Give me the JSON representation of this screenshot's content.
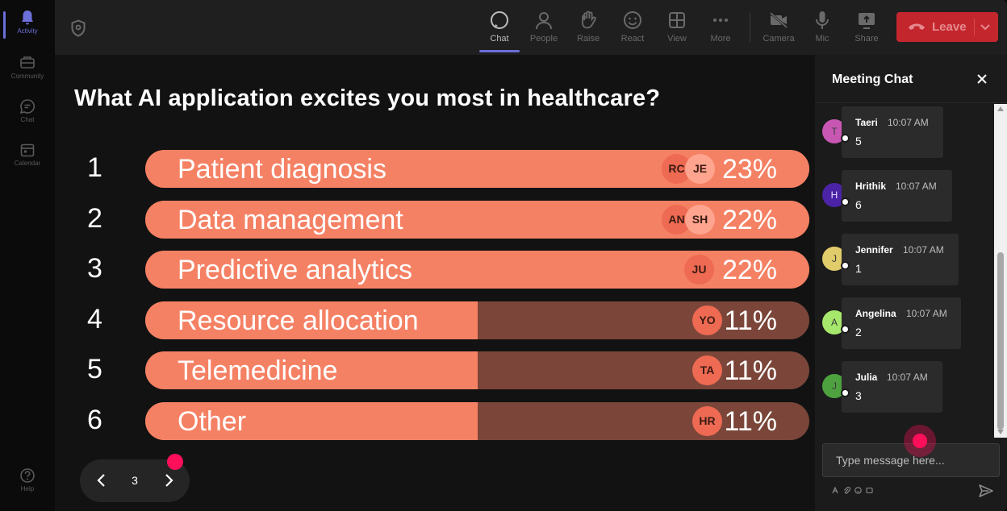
{
  "rail": {
    "items": [
      {
        "label": "Activity",
        "icon": "bell-icon",
        "active": true
      },
      {
        "label": "Community",
        "icon": "community-icon",
        "active": false
      },
      {
        "label": "Chat",
        "icon": "chat-icon",
        "active": false
      },
      {
        "label": "Calendar",
        "icon": "calendar-icon",
        "active": false
      }
    ],
    "help": "Help"
  },
  "toolbar": {
    "chat": "Chat",
    "people": "People",
    "raise": "Raise",
    "react": "React",
    "view": "View",
    "more": "More",
    "camera": "Camera",
    "mic": "Mic",
    "share": "Share",
    "leave": "Leave"
  },
  "poll": {
    "question": "What AI application excites you most in healthcare?",
    "options": [
      {
        "rank": "1",
        "label": "Patient diagnosis",
        "percent": "23%",
        "fraction": 1.0,
        "voters": [
          "RC",
          "JE"
        ]
      },
      {
        "rank": "2",
        "label": "Data management",
        "percent": "22%",
        "fraction": 1.0,
        "voters": [
          "AN",
          "SH"
        ]
      },
      {
        "rank": "3",
        "label": "Predictive analytics",
        "percent": "22%",
        "fraction": 1.0,
        "voters": [
          "JU"
        ]
      },
      {
        "rank": "4",
        "label": "Resource allocation",
        "percent": "11%",
        "fraction": 0.5,
        "voters": [
          "YO"
        ]
      },
      {
        "rank": "5",
        "label": "Telemedicine",
        "percent": "11%",
        "fraction": 0.5,
        "voters": [
          "TA"
        ]
      },
      {
        "rank": "6",
        "label": "Other",
        "percent": "11%",
        "fraction": 0.5,
        "voters": [
          "HR"
        ]
      }
    ],
    "page": "3"
  },
  "chat": {
    "title": "Meeting Chat",
    "messages": [
      {
        "initial": "T",
        "name": "Taeri",
        "time": "10:07 AM",
        "text": "5",
        "color": "#c857b4"
      },
      {
        "initial": "H",
        "name": "Hrithik",
        "time": "10:07 AM",
        "text": "6",
        "color": "#4a23a6"
      },
      {
        "initial": "J",
        "name": "Jennifer",
        "time": "10:07 AM",
        "text": "1",
        "color": "#e0cc6a"
      },
      {
        "initial": "A",
        "name": "Angelina",
        "time": "10:07 AM",
        "text": "2",
        "color": "#a6e86b"
      },
      {
        "initial": "J",
        "name": "Julia",
        "time": "10:07 AM",
        "text": "3",
        "color": "#4ea13f"
      }
    ],
    "input_placeholder": "Type message here..."
  },
  "colors": {
    "bar_fill": "#f58164",
    "bar_track": "#7b4639",
    "leave": "#c4262e",
    "accent": "#6b6fd8",
    "cursor": "#ff0f5a"
  }
}
